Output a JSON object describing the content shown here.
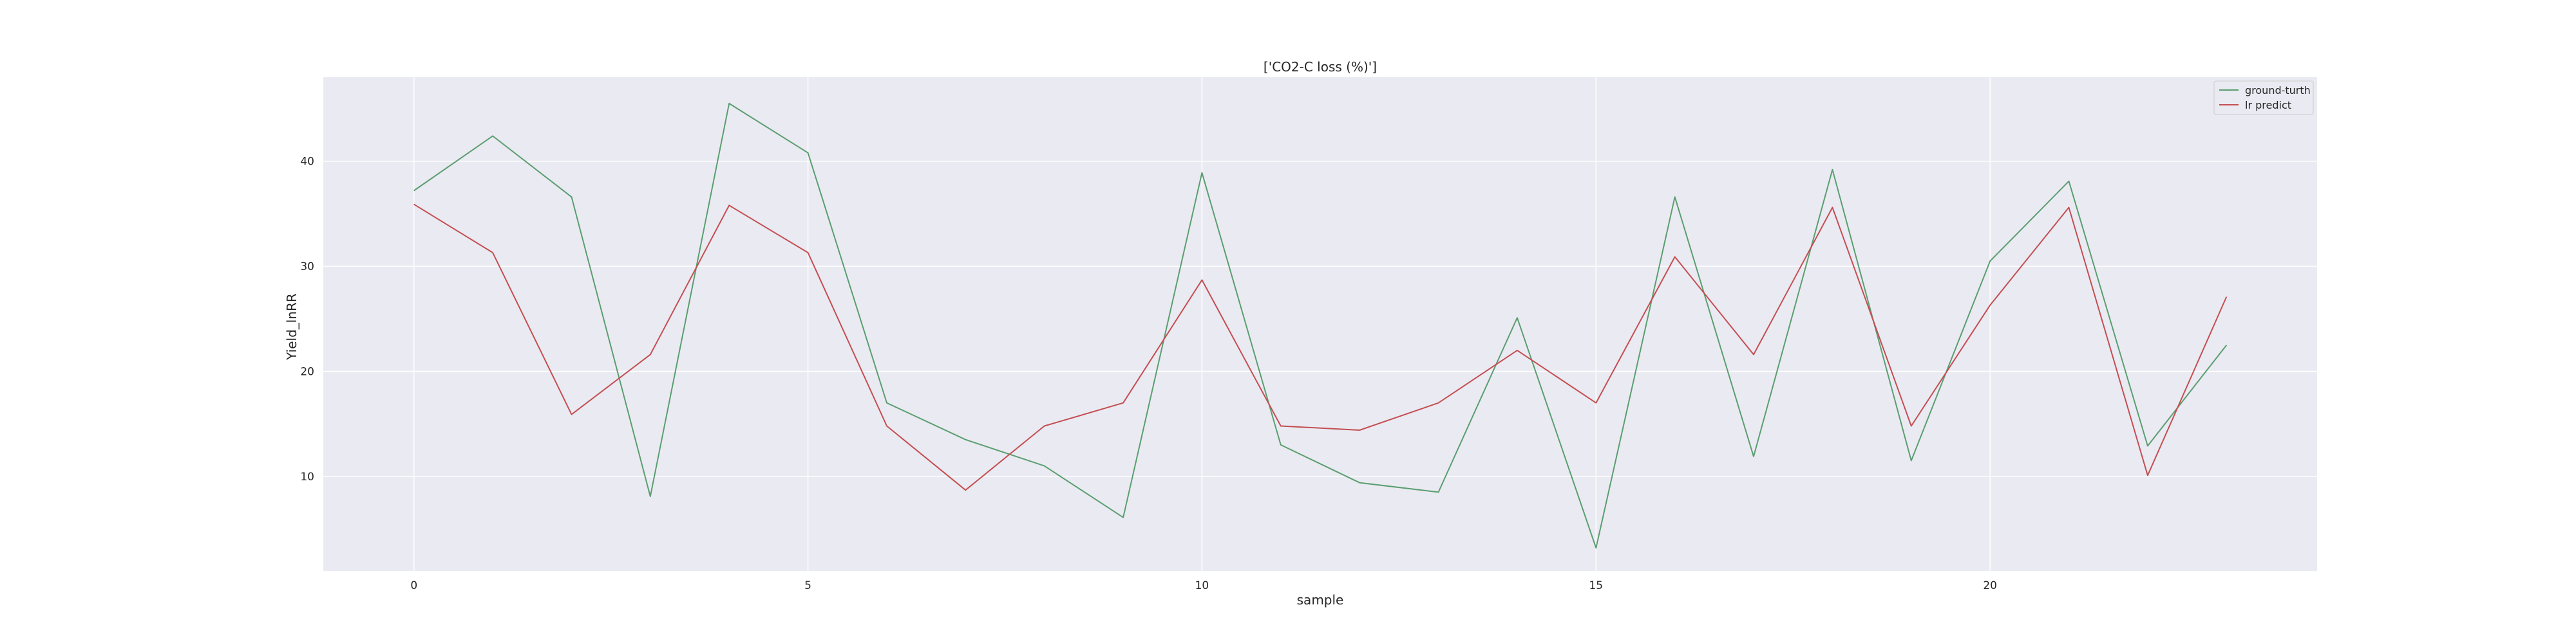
{
  "chart_data": {
    "type": "line",
    "title": "['CO2-C loss (%)']",
    "xlabel": "sample",
    "ylabel": "Yield_lnRR",
    "x": [
      0,
      1,
      2,
      3,
      4,
      5,
      6,
      7,
      8,
      9,
      10,
      11,
      12,
      13,
      14,
      15,
      16,
      17,
      18,
      19,
      20,
      21,
      22,
      23
    ],
    "xticks": [
      0,
      5,
      10,
      15,
      20
    ],
    "yticks": [
      10,
      20,
      30,
      40
    ],
    "xlim": [
      -1.15,
      24.15
    ],
    "ylim": [
      1.0,
      48.0
    ],
    "grid": true,
    "legend_position": "top-right",
    "series": [
      {
        "name": "ground-turth",
        "color": "#5a9e6f",
        "values": [
          37.2,
          42.4,
          36.6,
          8.1,
          45.5,
          40.8,
          17.0,
          13.5,
          11.0,
          6.1,
          38.9,
          13.0,
          9.4,
          8.5,
          25.1,
          3.2,
          36.6,
          11.9,
          39.2,
          11.5,
          30.5,
          38.1,
          12.9,
          22.5
        ]
      },
      {
        "name": "lr predict",
        "color": "#c44e52",
        "values": [
          35.9,
          31.3,
          15.9,
          21.6,
          35.8,
          31.3,
          14.8,
          8.7,
          14.8,
          17.0,
          28.7,
          14.8,
          14.4,
          17.0,
          22.0,
          17.0,
          30.9,
          21.6,
          35.6,
          14.8,
          26.3,
          35.6,
          10.1,
          27.1
        ]
      }
    ]
  }
}
